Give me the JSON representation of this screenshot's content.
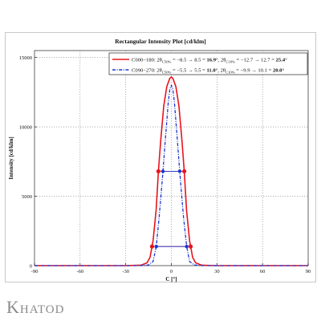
{
  "brand": {
    "name": "Khatod"
  },
  "colors": {
    "red": "#e8141c",
    "blue": "#1a36d8"
  },
  "chart_data": {
    "type": "line",
    "title": "Rectangular Intensity Plot [cd/klm]",
    "xlabel": "C [°]",
    "ylabel": "Intensity [cd/klm]",
    "xlim": [
      -90,
      90
    ],
    "ylim": [
      0,
      15500
    ],
    "xticks": [
      -90,
      -60,
      -30,
      0,
      30,
      60,
      90
    ],
    "yticks": [
      0,
      5000,
      10000,
      15000
    ],
    "grid": true,
    "legend_position": "top-right",
    "series": [
      {
        "name": "C000-180",
        "color": "#e8141c",
        "style": "solid",
        "legend": {
          "prefix": "C000−180: 2θ",
          "sub1": "C50%",
          "mid1": " = −8.5 → 8.5 = ",
          "bold1": "16.9°",
          "sep": ", 2θ",
          "sub2": "C10%",
          "mid2": " = −12.7 → 12.7 = ",
          "bold2": "25.4°"
        },
        "x": [
          -90,
          -30,
          -20,
          -16,
          -14,
          -12.7,
          -12,
          -10,
          -8.5,
          -7,
          -5,
          -3,
          -1,
          0,
          1,
          3,
          5,
          7,
          8.5,
          10,
          12,
          12.7,
          14,
          16,
          20,
          30,
          90
        ],
        "y": [
          0,
          0,
          30,
          200,
          600,
          1380,
          1800,
          4000,
          6800,
          9000,
          11500,
          12900,
          13500,
          13600,
          13500,
          12900,
          11500,
          9000,
          6800,
          4000,
          1800,
          1380,
          600,
          200,
          30,
          0,
          0
        ],
        "markers": {
          "x": [
            -12.7,
            -8.5,
            8.5,
            12.7
          ],
          "y": [
            1380,
            6800,
            6800,
            1380
          ]
        }
      },
      {
        "name": "C090-270",
        "color": "#1a36d8",
        "style": "dashdot",
        "legend": {
          "prefix": "C090−270: 2θ",
          "sub1": "C50%",
          "mid1": " = −5.5 → 5.5 = ",
          "bold1": "11.0°",
          "sep": ", 2θ",
          "sub2": "C10%",
          "mid2": " = −9.9 → 10.1 = ",
          "bold2": "20.0°"
        },
        "x": [
          -90,
          -20,
          -15,
          -12,
          -9.9,
          -8,
          -5.5,
          -4,
          -2,
          -1,
          0,
          1,
          2,
          4,
          5.5,
          8,
          10.1,
          12,
          15,
          20,
          90
        ],
        "y": [
          0,
          0,
          50,
          300,
          1380,
          3500,
          6800,
          9000,
          11800,
          12700,
          13000,
          12700,
          11800,
          9000,
          6800,
          3500,
          1380,
          300,
          50,
          0,
          0
        ],
        "markers": {
          "x": [
            -9.9,
            -5.5,
            5.5,
            10.1
          ],
          "y": [
            1380,
            6800,
            6800,
            1380
          ]
        }
      }
    ]
  }
}
